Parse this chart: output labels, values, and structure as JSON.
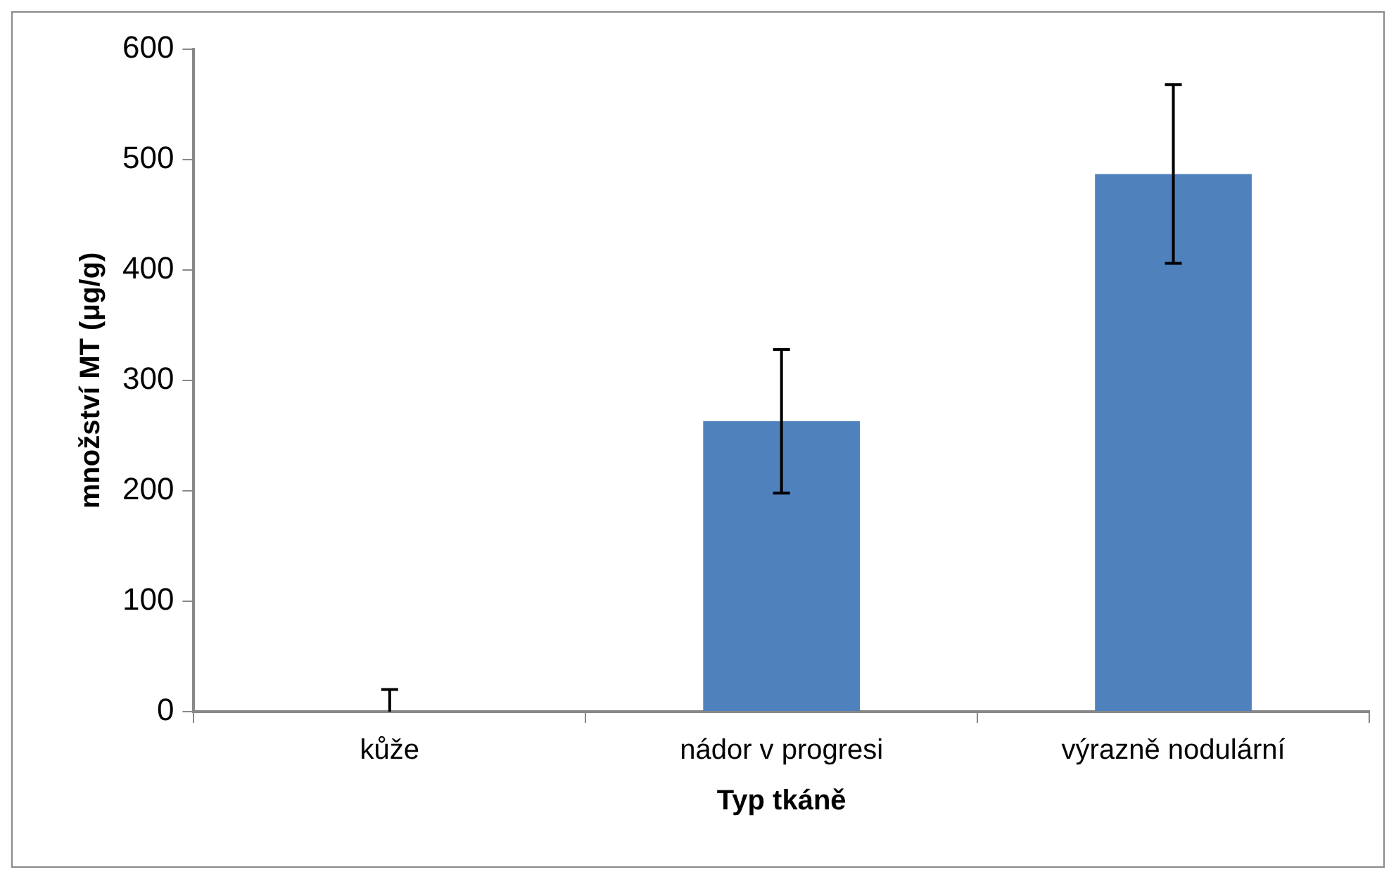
{
  "chart_data": {
    "type": "bar",
    "xlabel": "Typ tkáně",
    "ylabel": "množství MT (μg/g)",
    "categories": [
      "kůže",
      "nádor v progresi",
      "výrazně nodulární"
    ],
    "values": [
      0,
      263,
      487
    ],
    "errors": [
      [
        0,
        20
      ],
      65,
      81
    ],
    "color": "#4f81bd",
    "ylim": [
      0,
      600
    ],
    "yticks": [
      0,
      100,
      200,
      300,
      400,
      500,
      600
    ],
    "grid": false,
    "legend": false
  }
}
